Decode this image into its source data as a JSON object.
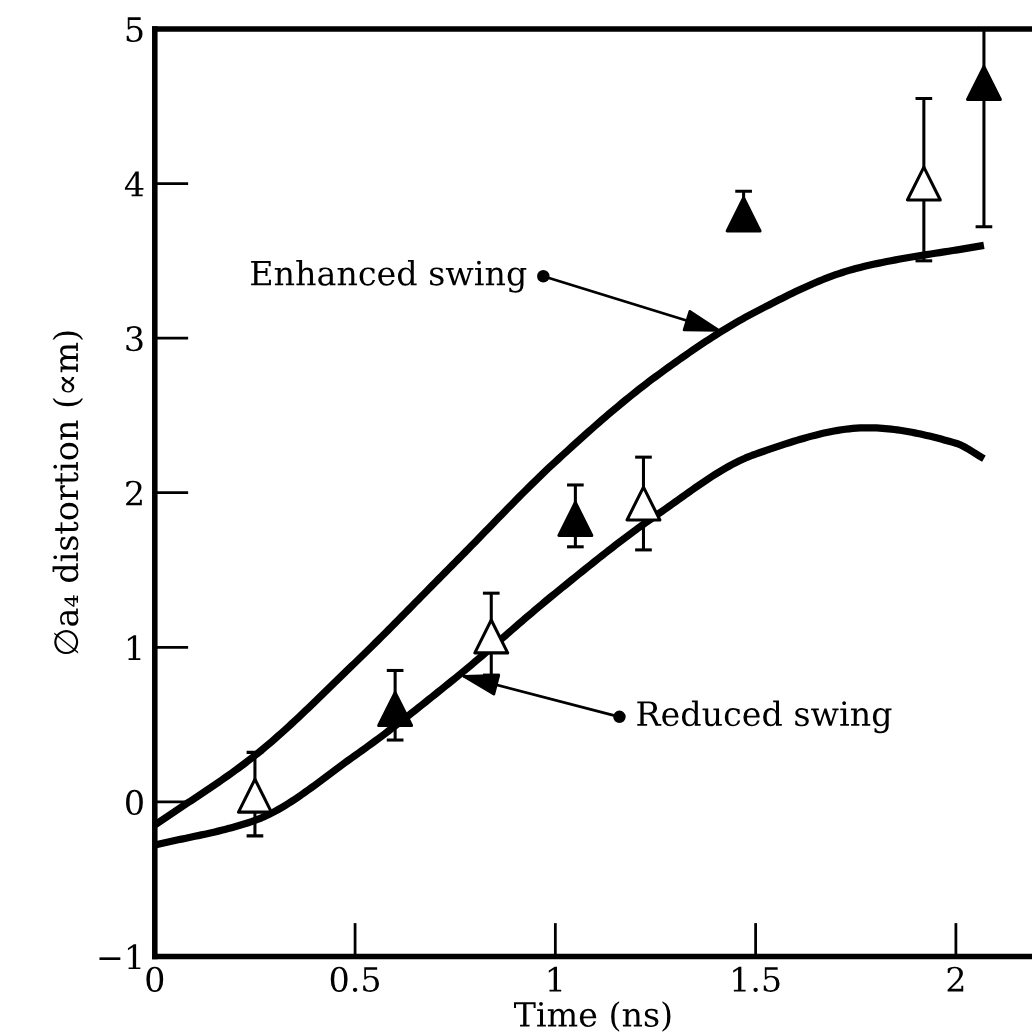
{
  "chart_data": {
    "type": "scatter",
    "xlabel": "Time (ns)",
    "ylabel": "∅a₄ distortion (∝m)",
    "xlim": [
      0,
      2.19
    ],
    "ylim": [
      -1,
      5
    ],
    "xticks": [
      0,
      0.5,
      1,
      1.5,
      2
    ],
    "yticks": [
      {
        "value": -1,
        "label": "−1"
      },
      0,
      1,
      2,
      3,
      4,
      5
    ],
    "grid": false,
    "legend": false,
    "series": [
      {
        "type": "line",
        "color": "#000000",
        "marker": "none",
        "line_style": "solid",
        "x": [
          0,
          0.25,
          0.5,
          0.75,
          1.0,
          1.25,
          1.5,
          1.75,
          2.07
        ],
        "values": [
          -0.15,
          0.3,
          0.9,
          1.55,
          2.2,
          2.75,
          3.17,
          3.45,
          3.6
        ]
      },
      {
        "type": "line",
        "color": "#000000",
        "marker": "none",
        "line_style": "solid",
        "x": [
          0,
          0.25,
          0.5,
          0.75,
          1.0,
          1.25,
          1.5,
          1.78,
          2.0,
          2.07
        ],
        "values": [
          -0.28,
          -0.12,
          0.3,
          0.8,
          1.35,
          1.85,
          2.25,
          2.42,
          2.32,
          2.22
        ]
      },
      {
        "color": "#ffffff",
        "marker": "triangle",
        "x": [
          0.25,
          0.84,
          1.22,
          1.92
        ],
        "values": [
          0.04,
          1.07,
          1.93,
          4.0
        ],
        "errors": [
          [
            -0.22,
            0.32
          ],
          [
            0.82,
            1.35
          ],
          [
            1.63,
            2.23
          ],
          [
            3.5,
            4.55
          ]
        ]
      },
      {
        "color": "#000000",
        "marker": "triangle",
        "x": [
          0.6,
          1.05,
          1.47,
          2.07
        ],
        "values": [
          0.6,
          1.83,
          3.8,
          4.65
        ],
        "errors": [
          [
            0.4,
            0.85
          ],
          [
            1.65,
            2.05
          ],
          [
            3.72,
            3.95
          ],
          [
            3.72,
            5.0
          ]
        ]
      }
    ],
    "annotations": [
      {
        "text": "Enhanced swing",
        "x": 1.42,
        "y": 3.04
      },
      {
        "text": "Reduced swing",
        "x": 0.76,
        "y": 0.82
      }
    ]
  }
}
